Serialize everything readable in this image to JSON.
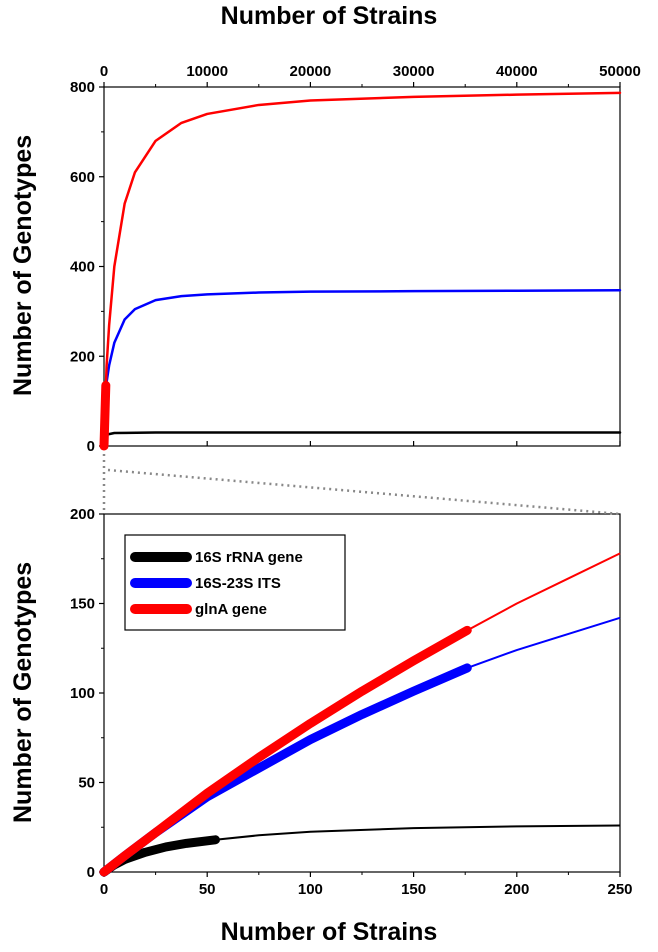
{
  "chart_data": [
    {
      "panel": "top",
      "type": "line",
      "xlabel": "Number of Strains",
      "ylabel": "Number of Genotypes",
      "xlim": [
        0,
        50000
      ],
      "ylim": [
        0,
        800
      ],
      "xticks": [
        0,
        10000,
        20000,
        30000,
        40000,
        50000
      ],
      "yticks": [
        0,
        200,
        400,
        600,
        800
      ],
      "x_axis_position": "top",
      "grid": false,
      "series": [
        {
          "color": "#000000",
          "x": [
            0,
            200,
            1000,
            5000,
            10000,
            20000,
            30000,
            40000,
            50000
          ],
          "y": [
            0,
            25,
            29,
            30,
            30,
            30,
            30,
            30,
            30
          ]
        },
        {
          "color": "#0000ff",
          "x": [
            0,
            250,
            500,
            1000,
            2000,
            3000,
            5000,
            7500,
            10000,
            15000,
            20000,
            30000,
            40000,
            50000
          ],
          "y": [
            0,
            142,
            180,
            230,
            282,
            305,
            325,
            334,
            338,
            342,
            344,
            345,
            346,
            347
          ]
        },
        {
          "color": "#ff0000",
          "x": [
            0,
            250,
            500,
            1000,
            2000,
            3000,
            5000,
            7500,
            10000,
            15000,
            20000,
            30000,
            40000,
            50000
          ],
          "y": [
            0,
            178,
            270,
            400,
            540,
            610,
            680,
            720,
            740,
            760,
            770,
            778,
            783,
            787
          ]
        },
        {
          "color": "#ff0000",
          "observed": true,
          "x": [
            0,
            176
          ],
          "y": [
            0,
            135
          ]
        }
      ]
    },
    {
      "panel": "bottom",
      "type": "line",
      "xlabel": "Number of Strains",
      "ylabel": "Number of Genotypes",
      "xlim": [
        0,
        250
      ],
      "ylim": [
        0,
        200
      ],
      "xticks": [
        0,
        50,
        100,
        150,
        200,
        250
      ],
      "yticks": [
        0,
        50,
        100,
        150,
        200
      ],
      "grid": false,
      "legend_position": "top-left",
      "series": [
        {
          "name": "16S rRNA gene",
          "color": "#000000",
          "x": [
            0,
            5,
            10,
            20,
            30,
            40,
            54,
            75,
            100,
            150,
            200,
            250
          ],
          "y": [
            0,
            4,
            7,
            11,
            14,
            16,
            18,
            20.5,
            22.5,
            24.5,
            25.5,
            26
          ],
          "observed_up_to": 54
        },
        {
          "name": "16S-23S ITS",
          "color": "#0000ff",
          "x": [
            0,
            10,
            25,
            50,
            75,
            100,
            125,
            150,
            176,
            200,
            225,
            250
          ],
          "y": [
            0,
            9,
            22,
            42,
            58,
            74,
            88,
            101,
            114,
            124,
            133,
            142
          ],
          "observed_up_to": 176
        },
        {
          "name": "glnA gene",
          "color": "#ff0000",
          "x": [
            0,
            10,
            25,
            50,
            75,
            100,
            125,
            150,
            176,
            200,
            225,
            250
          ],
          "y": [
            0,
            9,
            22,
            44,
            64,
            83,
            101,
            118,
            135,
            150,
            164,
            178
          ],
          "observed_up_to": 176
        }
      ]
    }
  ]
}
